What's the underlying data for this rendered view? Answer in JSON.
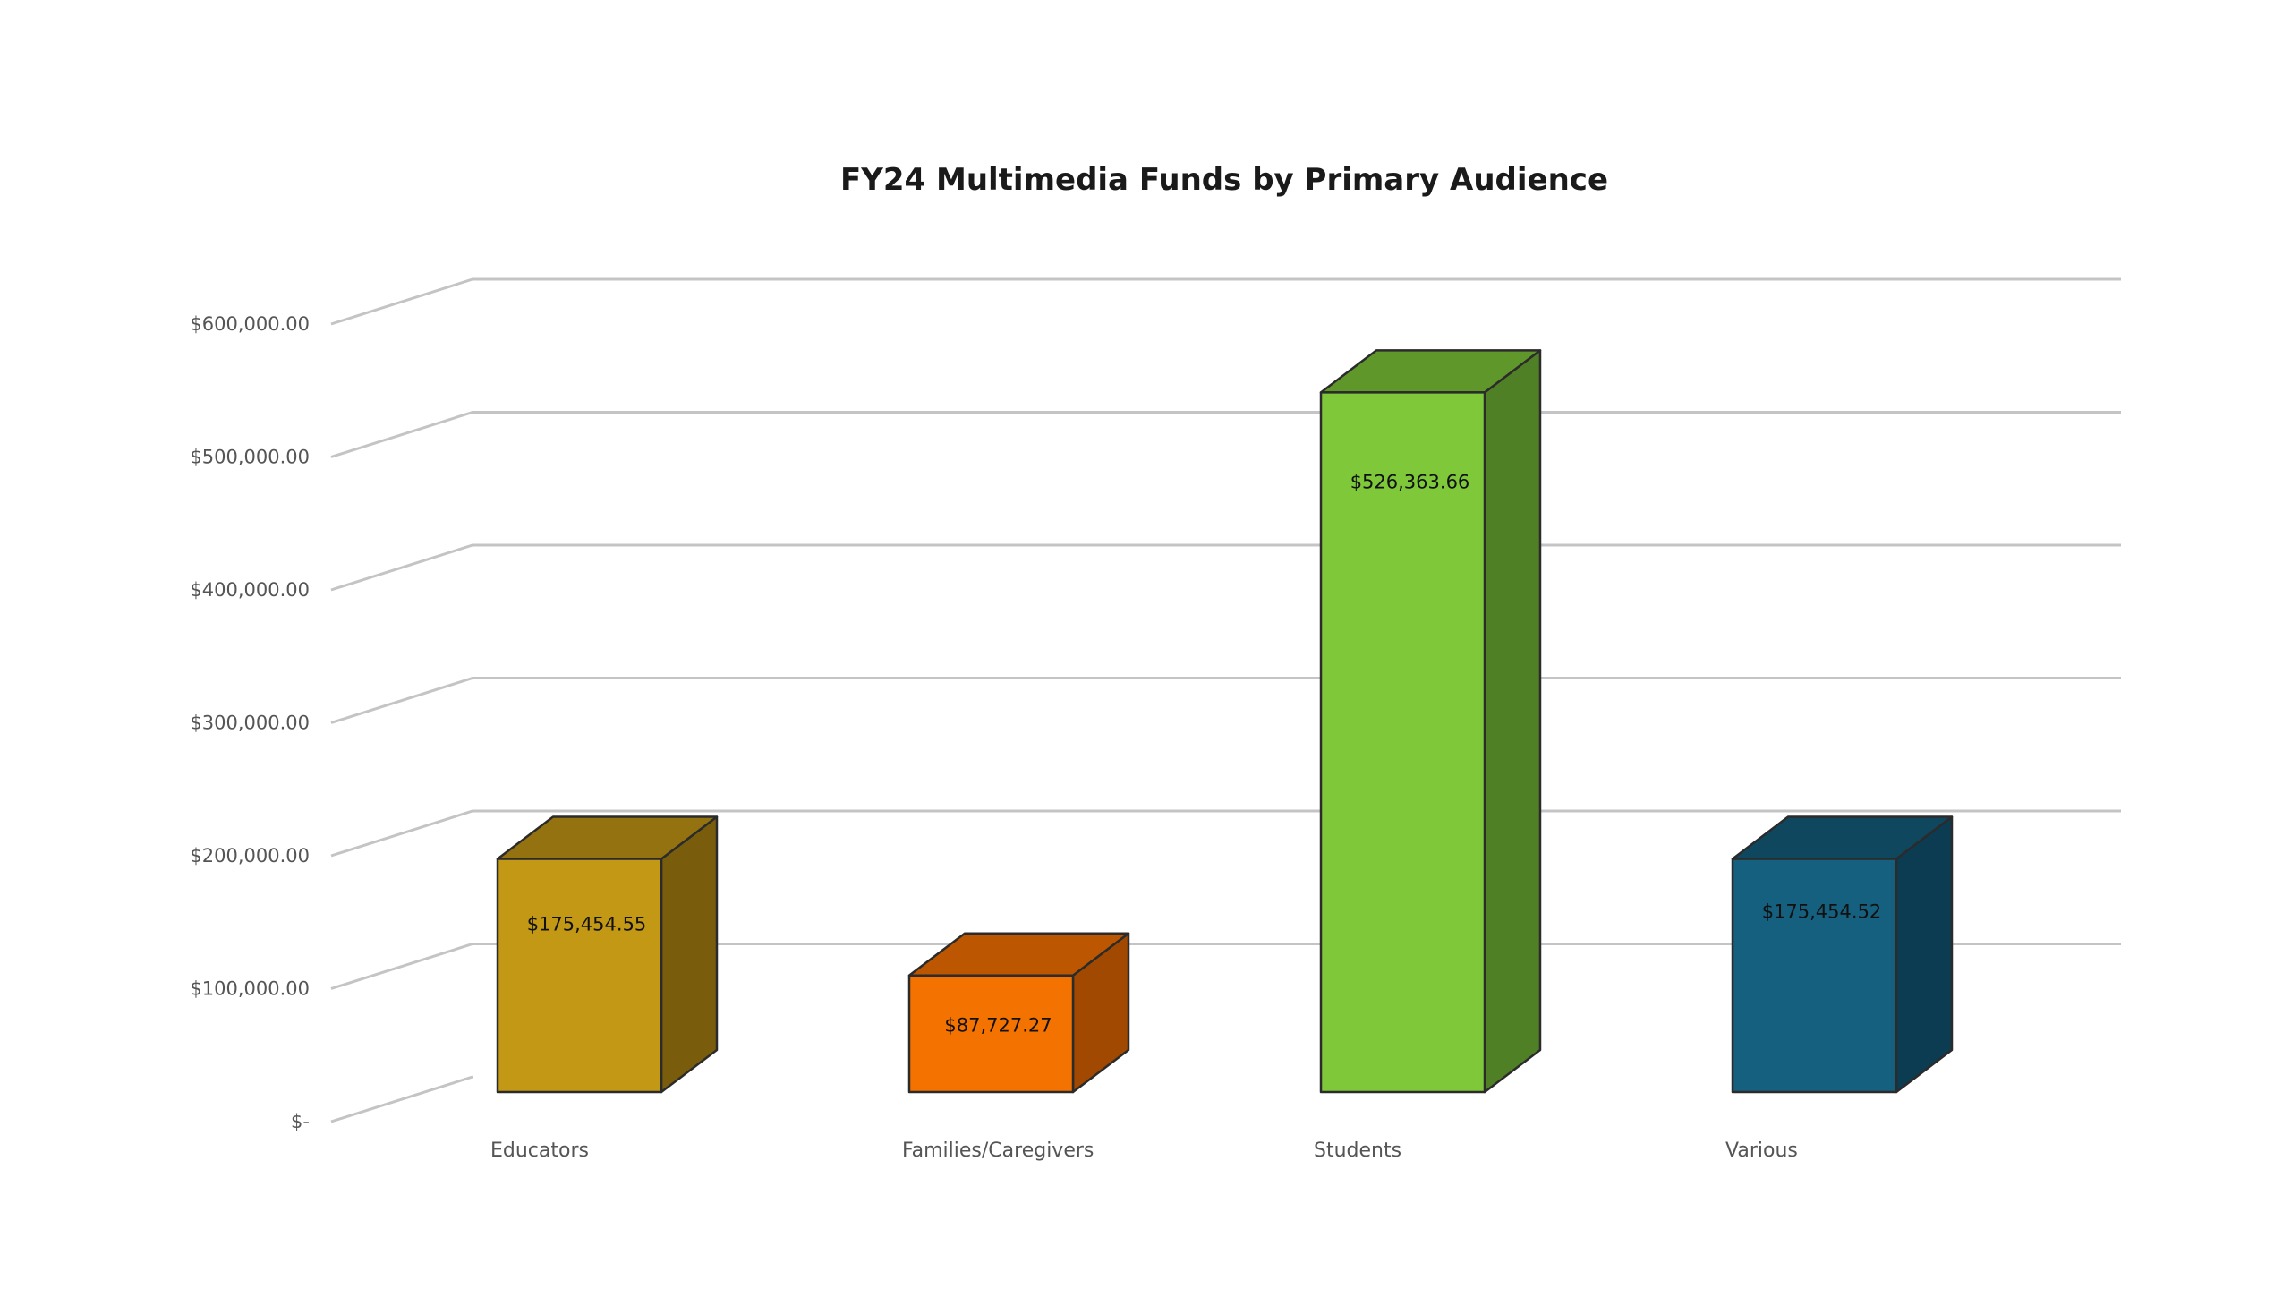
{
  "chart_data": {
    "type": "bar",
    "title": "FY24 Multimedia Funds by Primary Audience",
    "xlabel": "",
    "ylabel": "",
    "ylim": [
      0,
      600000
    ],
    "yticks": [
      0,
      100000,
      200000,
      300000,
      400000,
      500000,
      600000
    ],
    "ytick_labels": [
      "$-",
      "$100,000.00",
      "$200,000.00",
      "$300,000.00",
      "$400,000.00",
      "$500,000.00",
      "$600,000.00"
    ],
    "grid": true,
    "legend": "none",
    "categories": [
      "Educators",
      "Families/Caregivers",
      "Students",
      "Various"
    ],
    "values": [
      175454.55,
      87727.27,
      526363.66,
      175454.52
    ],
    "data_labels": [
      "$175,454.55",
      "$87,727.27",
      "$526,363.66",
      "$175,454.52"
    ],
    "colors": {
      "front": [
        "#c29815",
        "#f47200",
        "#7ec83a",
        "#155f7f"
      ],
      "top": [
        "#94720f",
        "#bc5600",
        "#5f972b",
        "#0f475f"
      ],
      "side": [
        "#7a5d0c",
        "#a14900",
        "#508025",
        "#0b3c51"
      ]
    }
  }
}
